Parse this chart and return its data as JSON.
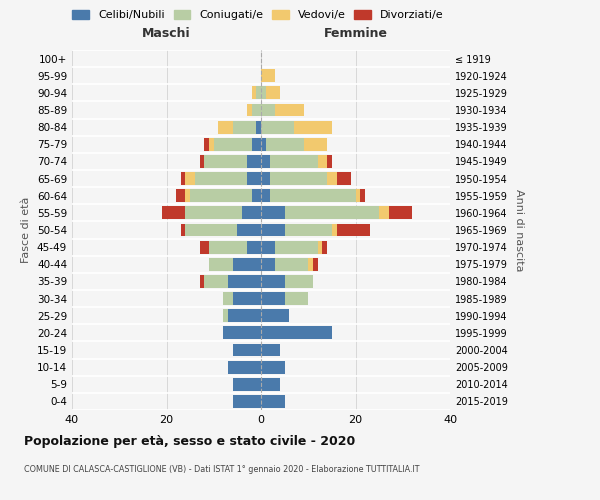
{
  "age_groups": [
    "0-4",
    "5-9",
    "10-14",
    "15-19",
    "20-24",
    "25-29",
    "30-34",
    "35-39",
    "40-44",
    "45-49",
    "50-54",
    "55-59",
    "60-64",
    "65-69",
    "70-74",
    "75-79",
    "80-84",
    "85-89",
    "90-94",
    "95-99",
    "100+"
  ],
  "birth_years": [
    "2015-2019",
    "2010-2014",
    "2005-2009",
    "2000-2004",
    "1995-1999",
    "1990-1994",
    "1985-1989",
    "1980-1984",
    "1975-1979",
    "1970-1974",
    "1965-1969",
    "1960-1964",
    "1955-1959",
    "1950-1954",
    "1945-1949",
    "1940-1944",
    "1935-1939",
    "1930-1934",
    "1925-1929",
    "1920-1924",
    "≤ 1919"
  ],
  "colors": {
    "celibi": "#4a7aab",
    "coniugati": "#b8cda4",
    "vedovi": "#f2c96e",
    "divorziati": "#c0392b"
  },
  "maschi": {
    "celibi": [
      6,
      6,
      7,
      6,
      8,
      7,
      6,
      7,
      6,
      3,
      5,
      4,
      2,
      3,
      3,
      2,
      1,
      0,
      0,
      0,
      0
    ],
    "coniugati": [
      0,
      0,
      0,
      0,
      0,
      1,
      2,
      5,
      5,
      8,
      11,
      12,
      13,
      11,
      9,
      8,
      5,
      2,
      1,
      0,
      0
    ],
    "vedovi": [
      0,
      0,
      0,
      0,
      0,
      0,
      0,
      0,
      0,
      0,
      0,
      0,
      1,
      2,
      0,
      1,
      3,
      1,
      1,
      0,
      0
    ],
    "divorziati": [
      0,
      0,
      0,
      0,
      0,
      0,
      0,
      1,
      0,
      2,
      1,
      5,
      2,
      1,
      1,
      1,
      0,
      0,
      0,
      0,
      0
    ]
  },
  "femmine": {
    "celibi": [
      5,
      4,
      5,
      4,
      15,
      6,
      5,
      5,
      3,
      3,
      5,
      5,
      2,
      2,
      2,
      1,
      0,
      0,
      0,
      0,
      0
    ],
    "coniugati": [
      0,
      0,
      0,
      0,
      0,
      0,
      5,
      6,
      7,
      9,
      10,
      20,
      18,
      12,
      10,
      8,
      7,
      3,
      1,
      0,
      0
    ],
    "vedovi": [
      0,
      0,
      0,
      0,
      0,
      0,
      0,
      0,
      1,
      1,
      1,
      2,
      1,
      2,
      2,
      5,
      8,
      6,
      3,
      3,
      0
    ],
    "divorziati": [
      0,
      0,
      0,
      0,
      0,
      0,
      0,
      0,
      1,
      1,
      7,
      5,
      1,
      3,
      1,
      0,
      0,
      0,
      0,
      0,
      0
    ]
  },
  "title": "Popolazione per età, sesso e stato civile - 2020",
  "subtitle": "COMUNE DI CALASCA-CASTIGLIONE (VB) - Dati ISTAT 1° gennaio 2020 - Elaborazione TUTTITALIA.IT",
  "xlabel_left": "Maschi",
  "xlabel_right": "Femmine",
  "ylabel_left": "Fasce di età",
  "ylabel_right": "Anni di nascita",
  "xlim": 40,
  "legend_labels": [
    "Celibi/Nubili",
    "Coniugati/e",
    "Vedovi/e",
    "Divorziati/e"
  ],
  "background_color": "#f5f5f5",
  "bar_height": 0.75
}
